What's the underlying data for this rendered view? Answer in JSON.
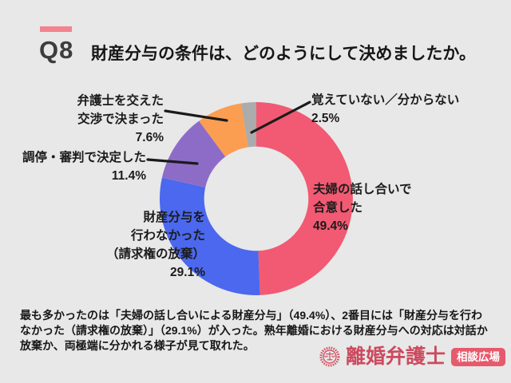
{
  "page": {
    "background": "#E8E8E8"
  },
  "header": {
    "q_label": "Q8",
    "title": "財産分与の条件は、どのようにして決めましたか。",
    "accent_color": "#F2838F"
  },
  "chart_data": {
    "type": "pie",
    "subtype": "donut",
    "title": "財産分与の条件は、どのようにして決めましたか。",
    "start_angle_deg": 0,
    "direction": "clockwise",
    "inner_radius_ratio": 0.54,
    "unit": "%",
    "segments": [
      {
        "label": "夫婦の話し合いで合意した",
        "value": 49.4,
        "pct_label": "49.4%",
        "color": "#F15A72"
      },
      {
        "label": "財産分与を行わなかった（請求権の放棄）",
        "value": 29.1,
        "pct_label": "29.1%",
        "color": "#4B68EE"
      },
      {
        "label": "調停・審判で決定した",
        "value": 11.4,
        "pct_label": "11.4%",
        "color": "#8D6CC8"
      },
      {
        "label": "弁護士を交えた交渉で決まった",
        "value": 7.6,
        "pct_label": "7.6%",
        "color": "#FB9E51"
      },
      {
        "label": "覚えていない／分からない",
        "value": 2.5,
        "pct_label": "2.5%",
        "color": "#ABABAB"
      }
    ]
  },
  "labels": {
    "couple": {
      "lines": [
        "夫婦の話し合いで",
        "合意した"
      ]
    },
    "waiver": {
      "lines": [
        "財産分与を",
        "行わなかった",
        "（請求権の放棄）"
      ]
    },
    "mediation": {
      "lines": [
        "調停・審判で決定した"
      ]
    },
    "lawyer": {
      "lines": [
        "弁護士を交えた",
        "交渉で決まった"
      ]
    },
    "unknown": {
      "lines": [
        "覚えていない／分からない"
      ]
    }
  },
  "summary": {
    "lines": [
      "最も多かったのは「夫婦の話し合いによる財産分与」（49.4%）、2番目には「財産分与を行わ",
      "なかった（請求権の放棄）」（29.1%）が入った。熟年離婚における財産分与への対応は対話か",
      "放棄か、両極端に分かれる様子が見て取れた。"
    ]
  },
  "logo": {
    "brand": "離婚弁護士",
    "badge": "相談広場",
    "brand_color": "#CC4A5E",
    "badge_bg": "#E65A6D",
    "icon_color": "#D25766"
  }
}
